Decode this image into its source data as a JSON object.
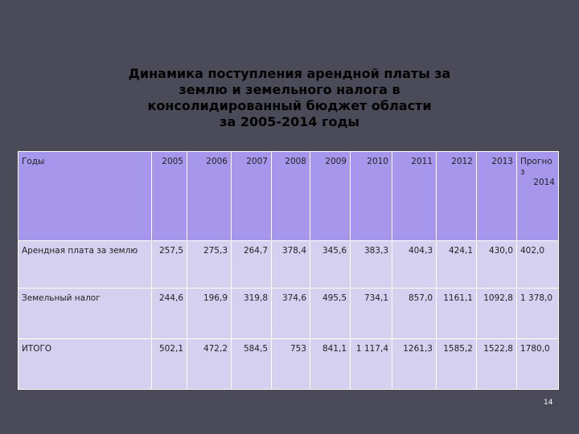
{
  "title": {
    "line1": "Динамика поступления арендной платы за",
    "line2": "землю и  земельного налога в",
    "line3": "консолидированный бюджет области",
    "line4": "за 2005-2014 годы"
  },
  "table": {
    "header": {
      "label": "Годы",
      "years": [
        "2005",
        "2006",
        "2007",
        "2008",
        "2009",
        "2010",
        "2011",
        "2012",
        "2013"
      ],
      "forecast_line1": "Прогно",
      "forecast_line2": "з",
      "forecast_line3": "2014"
    },
    "rows": [
      {
        "label": "Арендная плата за землю",
        "values": [
          "257,5",
          "275,3",
          "264,7",
          "378,4",
          "345,6",
          "383,3",
          "404,3",
          "424,1",
          "430,0",
          "402,0"
        ]
      },
      {
        "label": "Земельный налог",
        "values": [
          "244,6",
          "196,9",
          "319,8",
          "374,6",
          "495,5",
          "734,1",
          "857,0",
          "1161,1",
          "1092,8",
          "1 378,0"
        ]
      },
      {
        "label": "ИТОГО",
        "values": [
          "502,1",
          "472,2",
          "584,5",
          "753",
          "841,1",
          "1 117,4",
          "1261,3",
          "1585,2",
          "1522,8",
          "1780,0"
        ]
      }
    ]
  },
  "page_number": "14",
  "colors": {
    "background": "#4a4a58",
    "header_fill": "#a797ec",
    "body_fill": "#d5d0f0",
    "grid_lines": "#ffffff"
  }
}
